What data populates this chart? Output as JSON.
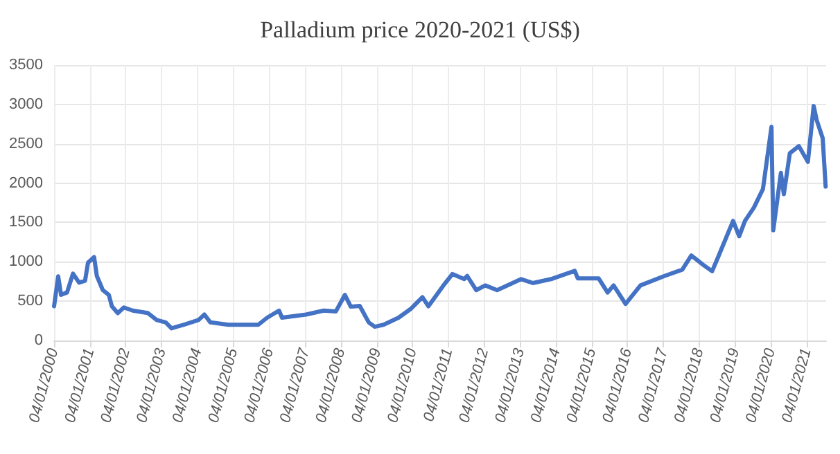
{
  "chart_data": {
    "type": "line",
    "title": "Palladium price 2020-2021 (US$)",
    "x": [
      "2000-01-04",
      "2000-02",
      "2000-03",
      "2000-05",
      "2000-07",
      "2000-09",
      "2000-11",
      "2000-12",
      "2001-02",
      "2001-03",
      "2001-05",
      "2001-07",
      "2001-08",
      "2001-10",
      "2001-12",
      "2002-03",
      "2002-08",
      "2002-11",
      "2003-02",
      "2003-04",
      "2003-08",
      "2004-01",
      "2004-03",
      "2004-05",
      "2004-11",
      "2005-09",
      "2005-12",
      "2006-04",
      "2006-05",
      "2007-01",
      "2007-07",
      "2007-11",
      "2008-02",
      "2008-04",
      "2008-07",
      "2008-10",
      "2008-12",
      "2009-03",
      "2009-08",
      "2009-12",
      "2010-04",
      "2010-06",
      "2010-11",
      "2011-02",
      "2011-06",
      "2011-07",
      "2011-10",
      "2012-01",
      "2012-05",
      "2013-01",
      "2013-05",
      "2013-11",
      "2014-07",
      "2014-08",
      "2015-03",
      "2015-06",
      "2015-08",
      "2015-12",
      "2016-05",
      "2017-01",
      "2017-07",
      "2017-10",
      "2018-02",
      "2018-05",
      "2018-07",
      "2018-12",
      "2019-02",
      "2019-04",
      "2019-07",
      "2019-10",
      "2020-01-10",
      "2020-01-28",
      "2020-04",
      "2020-05",
      "2020-07",
      "2020-10",
      "2021-01",
      "2021-03",
      "2021-04",
      "2021-06",
      "2021-07"
    ],
    "series": [
      {
        "color": "#4472c4",
        "values": [
          435,
          815,
          580,
          610,
          850,
          735,
          760,
          990,
          1060,
          820,
          640,
          580,
          435,
          348,
          420,
          380,
          350,
          260,
          230,
          155,
          200,
          260,
          330,
          230,
          200,
          200,
          290,
          380,
          290,
          330,
          380,
          370,
          580,
          430,
          440,
          230,
          175,
          200,
          290,
          400,
          550,
          435,
          700,
          845,
          780,
          820,
          640,
          700,
          640,
          780,
          730,
          780,
          885,
          790,
          790,
          610,
          700,
          465,
          700,
          820,
          900,
          1080,
          960,
          880,
          1060,
          1520,
          1325,
          1520,
          1690,
          1925,
          2715,
          1400,
          2130,
          1860,
          2380,
          2470,
          2270,
          2980,
          2800,
          2570,
          1955
        ]
      }
    ],
    "xlim": [
      "2000-01-04",
      "2021-07-20"
    ],
    "xticks": [
      {
        "value": "2000-01-04",
        "label": "04/01/2000"
      },
      {
        "value": "2001-01-04",
        "label": "04/01/2001"
      },
      {
        "value": "2002-01-04",
        "label": "04/01/2002"
      },
      {
        "value": "2003-01-04",
        "label": "04/01/2003"
      },
      {
        "value": "2004-01-04",
        "label": "04/01/2004"
      },
      {
        "value": "2005-01-04",
        "label": "04/01/2005"
      },
      {
        "value": "2006-01-04",
        "label": "04/01/2006"
      },
      {
        "value": "2007-01-04",
        "label": "04/01/2007"
      },
      {
        "value": "2008-01-04",
        "label": "04/01/2008"
      },
      {
        "value": "2009-01-04",
        "label": "04/01/2009"
      },
      {
        "value": "2010-01-04",
        "label": "04/01/2010"
      },
      {
        "value": "2011-01-04",
        "label": "04/01/2011"
      },
      {
        "value": "2012-01-04",
        "label": "04/01/2012"
      },
      {
        "value": "2013-01-04",
        "label": "04/01/2013"
      },
      {
        "value": "2014-01-04",
        "label": "04/01/2014"
      },
      {
        "value": "2015-01-04",
        "label": "04/01/2015"
      },
      {
        "value": "2016-01-04",
        "label": "04/01/2016"
      },
      {
        "value": "2017-01-04",
        "label": "04/01/2017"
      },
      {
        "value": "2018-01-04",
        "label": "04/01/2018"
      },
      {
        "value": "2019-01-04",
        "label": "04/01/2019"
      },
      {
        "value": "2020-01-04",
        "label": "04/01/2020"
      },
      {
        "value": "2021-01-04",
        "label": "04/01/2021"
      }
    ],
    "ylim": [
      0,
      3500
    ],
    "yticks": [
      0,
      500,
      1000,
      1500,
      2000,
      2500,
      3000,
      3500
    ],
    "grid": true,
    "marker": "none",
    "line_style": "solid"
  }
}
